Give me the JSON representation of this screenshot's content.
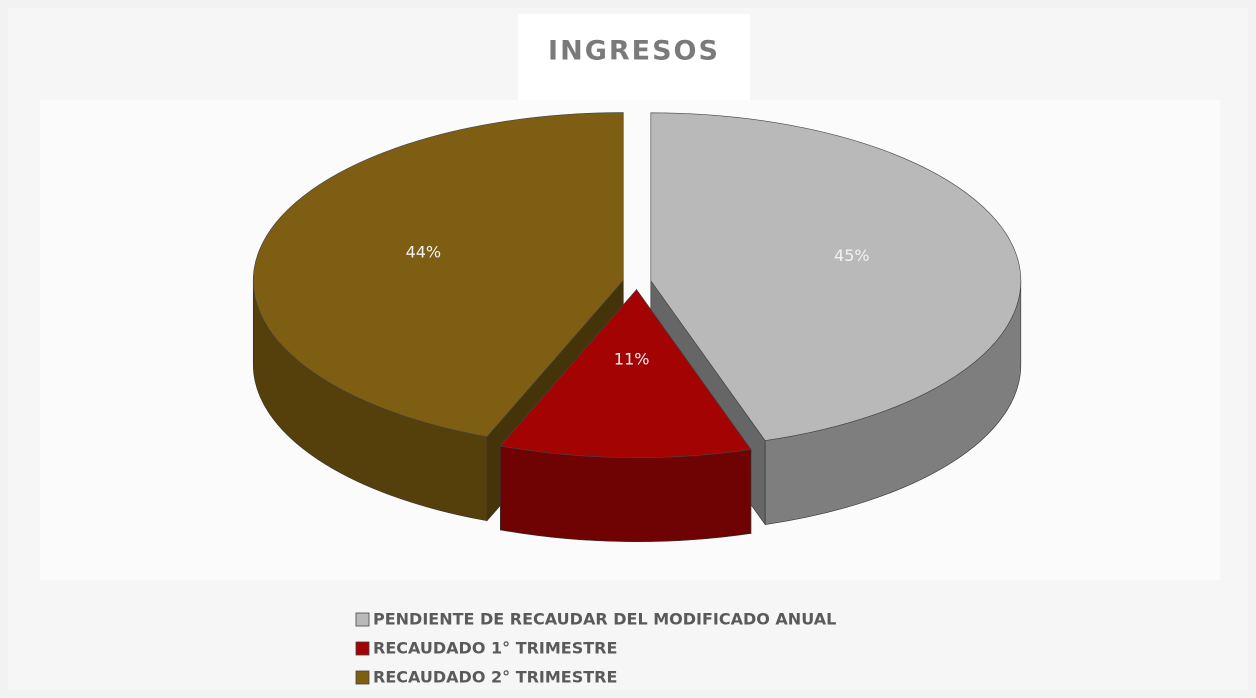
{
  "chart_data": {
    "type": "pie3d",
    "title": "INGRESOS",
    "categories": [
      "PENDIENTE DE RECAUDAR DEL MODIFICADO ANUAL",
      "RECAUDADO 1° TRIMESTRE",
      "RECAUDADO 2° TRIMESTRE"
    ],
    "values": [
      45,
      11,
      44
    ],
    "value_labels": [
      "45%",
      "11%",
      "44%"
    ],
    "colors": [
      "#b9b9b9",
      "#a30303",
      "#7d5e12"
    ],
    "legend": "bottom"
  }
}
